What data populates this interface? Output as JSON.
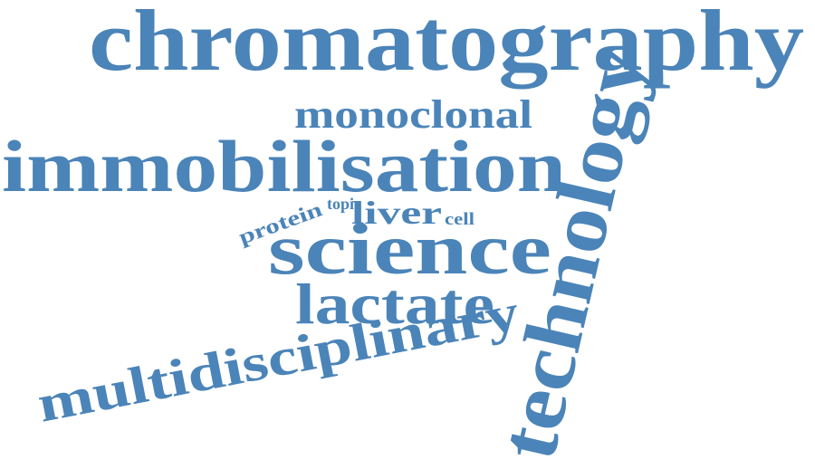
{
  "word_color": "#4b84b8",
  "words": {
    "chromatography": "chromatography",
    "technology": "technology",
    "immobilisation": "immobilisation",
    "monoclonal": "monoclonal",
    "science": "science",
    "lactate": "lactate",
    "multidisciplinary": "multidisciplinary",
    "protein": "protein",
    "topic": "topic",
    "liver": "liver",
    "cell": "cell"
  }
}
